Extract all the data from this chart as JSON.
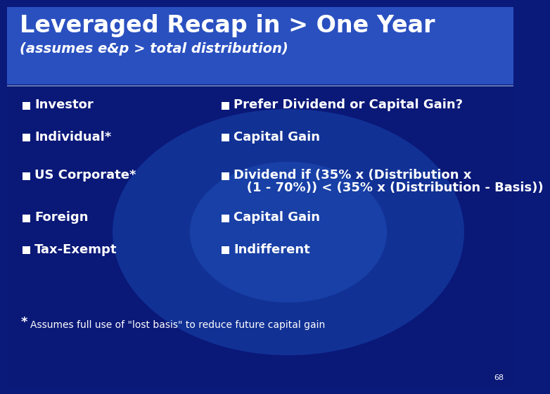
{
  "title": "Leveraged Recap in > One Year",
  "subtitle": "(assumes e&p > total distribution)",
  "header_bg": "#2a4ab5",
  "body_bg": "#0a1a7a",
  "glow_color": "#1a3aaa",
  "title_color": "#ffffff",
  "subtitle_color": "#ffffff",
  "text_color": "#ffffff",
  "separator_color": "#8aaad4",
  "left_items": [
    "Investor",
    "Individual*",
    "US Corporate*",
    "Foreign",
    "Tax-Exempt"
  ],
  "right_line1": [
    "Prefer Dividend or Capital Gain?",
    "Capital Gain",
    "Dividend if (35% x (Distribution x",
    "Capital Gain",
    "Indifferent"
  ],
  "right_line2": [
    "",
    "",
    "   (1 - 70%)) < (35% x (Distribution - Basis))",
    "",
    ""
  ],
  "footnote_star": "*",
  "footnote_text": "Assumes full use of \"lost basis\" to reduce future capital gain",
  "page_number": "68",
  "square_color": "#ffffff",
  "title_fontsize": 24,
  "subtitle_fontsize": 14,
  "body_fontsize": 13,
  "footnote_fontsize": 10,
  "page_fontsize": 8
}
